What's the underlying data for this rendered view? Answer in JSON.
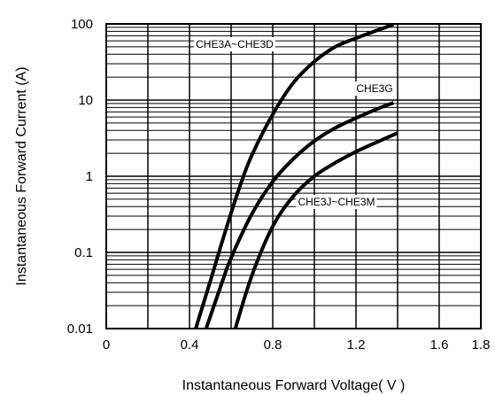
{
  "chart_data": {
    "type": "line",
    "xlabel": "Instantaneous Forward Voltage( V )",
    "ylabel": "Instantaneous Forward Current (A)",
    "x_scale": "linear",
    "y_scale": "log",
    "xlim": [
      0,
      1.8
    ],
    "ylim": [
      0.01,
      100
    ],
    "x_ticks": [
      0,
      0.4,
      0.8,
      1.2,
      1.6,
      1.8
    ],
    "x_tick_labels": [
      "0",
      "0.4",
      "0.8",
      "1.2",
      "1.6",
      "1.8"
    ],
    "y_ticks": [
      0.01,
      0.1,
      1,
      10,
      100
    ],
    "y_tick_labels": [
      "0.01",
      "0.1",
      "1",
      "10",
      "100"
    ],
    "grid": true,
    "series": [
      {
        "name": "CHE3A~CHE3D",
        "x": [
          0.43,
          0.5,
          0.55,
          0.6,
          0.65,
          0.7,
          0.8,
          0.9,
          1.0,
          1.1,
          1.2,
          1.3,
          1.38
        ],
        "y": [
          0.01,
          0.042,
          0.12,
          0.33,
          0.85,
          1.9,
          6.5,
          17,
          32,
          50,
          65,
          82,
          98
        ]
      },
      {
        "name": "CHE3G",
        "x": [
          0.48,
          0.55,
          0.6,
          0.7,
          0.8,
          0.9,
          1.0,
          1.1,
          1.2,
          1.3,
          1.38
        ],
        "y": [
          0.01,
          0.036,
          0.085,
          0.32,
          0.85,
          1.7,
          2.9,
          4.3,
          5.8,
          7.6,
          9.2
        ]
      },
      {
        "name": "CHE3J~CHE3M",
        "x": [
          0.62,
          0.7,
          0.8,
          0.9,
          1.0,
          1.1,
          1.2,
          1.3,
          1.4
        ],
        "y": [
          0.01,
          0.05,
          0.22,
          0.55,
          1.0,
          1.5,
          2.1,
          2.8,
          3.7
        ]
      }
    ]
  }
}
